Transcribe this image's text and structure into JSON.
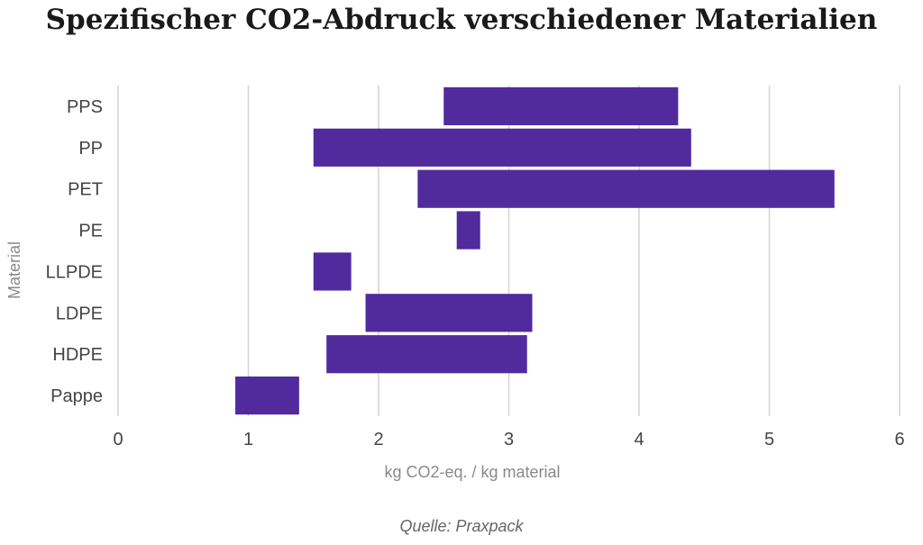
{
  "chart_data": {
    "type": "bar",
    "title": "Spezifischer CO2-Abdruck verschiedener Materialien",
    "xlabel": "kg CO2-eq. / kg material",
    "ylabel": "Material",
    "xlim": [
      0,
      6
    ],
    "x_ticks": [
      "0",
      "1",
      "2",
      "3",
      "4",
      "5",
      "6"
    ],
    "grid": true,
    "legend": "none",
    "bar_color": "#512a9e",
    "categories": [
      "PPS",
      "PP",
      "PET",
      "PE",
      "LLPDE",
      "LDPE",
      "HDPE",
      "Pappe"
    ],
    "ranges": [
      [
        2.5,
        4.3
      ],
      [
        1.5,
        4.4
      ],
      [
        2.3,
        5.5
      ],
      [
        2.6,
        2.78
      ],
      [
        1.5,
        1.79
      ],
      [
        1.9,
        3.18
      ],
      [
        1.6,
        3.14
      ],
      [
        0.9,
        1.39
      ]
    ]
  },
  "source": "Quelle: Praxpack"
}
